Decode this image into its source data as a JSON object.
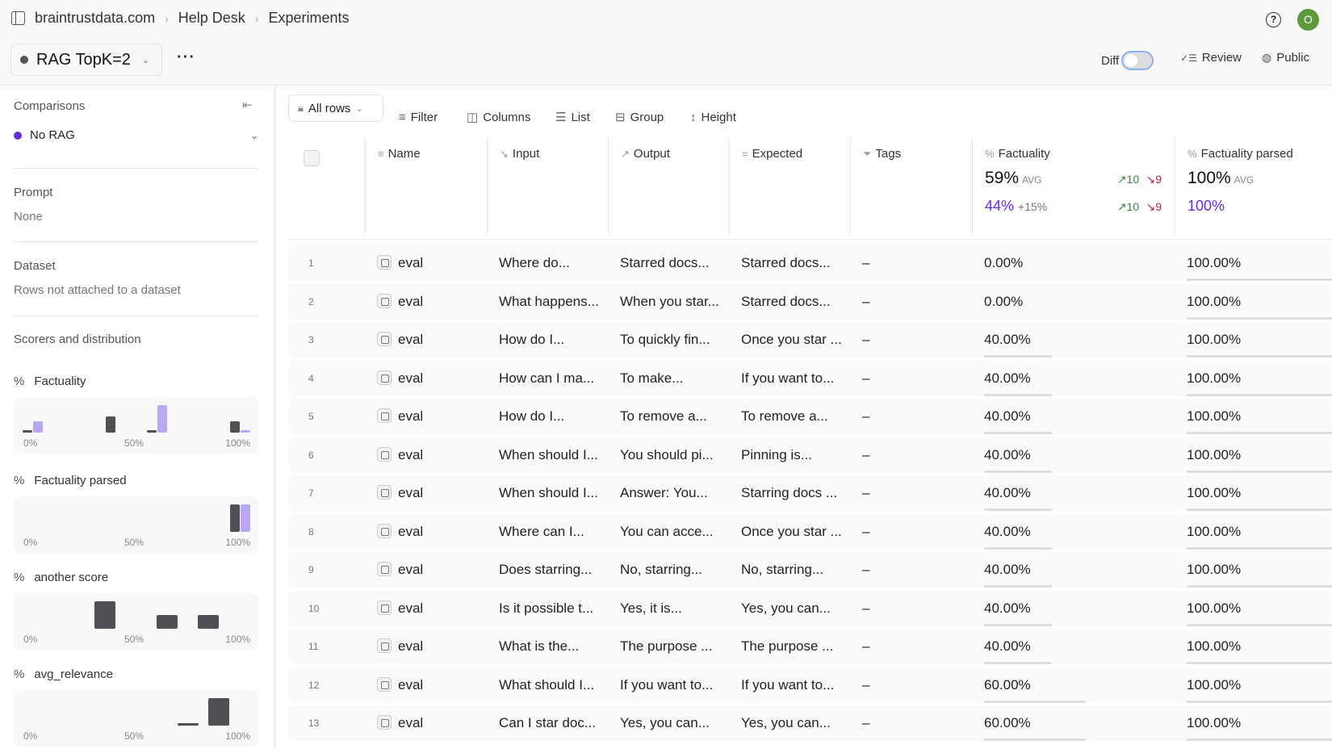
{
  "breadcrumb": [
    "braintrustdata.com",
    "Help Desk",
    "Experiments"
  ],
  "experiment": {
    "name": "RAG TopK=2",
    "color": "#555555"
  },
  "header": {
    "diff_label": "Diff",
    "diff_on": false,
    "review_label": "Review",
    "public_label": "Public",
    "avatar_initial": "O"
  },
  "sidebar": {
    "comparisons_label": "Comparisons",
    "comparison": {
      "name": "No RAG",
      "color": "#6a2bd9"
    },
    "prompt_label": "Prompt",
    "prompt_value": "None",
    "dataset_label": "Dataset",
    "dataset_value": "Rows not attached to a dataset",
    "scorers_label": "Scorers and distribution",
    "axis": [
      "0%",
      "50%",
      "100%"
    ],
    "scorers": [
      {
        "name": "Factuality",
        "bins": [
          {
            "v": 0,
            "p": 0,
            "c": 2
          },
          {
            "v": 0.4,
            "p": 3,
            "c": null
          },
          {
            "v": 0.6,
            "p": 0,
            "c": 5
          },
          {
            "v": 1,
            "p": 2,
            "c": 0
          }
        ]
      },
      {
        "name": "Factuality parsed",
        "bins": [
          {
            "v": 1,
            "p": 5,
            "c": 5
          }
        ]
      },
      {
        "name": "another score",
        "bins": [
          {
            "v": 0.35,
            "p": 4,
            "c": null
          },
          {
            "v": 0.65,
            "p": 2,
            "c": null
          },
          {
            "v": 0.85,
            "p": 2,
            "c": null
          }
        ]
      },
      {
        "name": "avg_relevance",
        "bins": [
          {
            "v": 0.75,
            "p": 0,
            "c": null
          },
          {
            "v": 0.9,
            "p": 4,
            "c": null
          }
        ]
      }
    ]
  },
  "toolbar": {
    "all_rows": "All rows",
    "filter": "Filter",
    "columns": "Columns",
    "list": "List",
    "group": "Group",
    "height": "Height"
  },
  "columns": {
    "name": "Name",
    "input": "Input",
    "output": "Output",
    "expected": "Expected",
    "tags": "Tags",
    "factuality": "Factuality",
    "factuality_parsed": "Factuality parsed"
  },
  "summary": {
    "factuality": {
      "avg": "59%",
      "avg_label": "AVG",
      "up": "10",
      "down": "9",
      "cmp": "44%",
      "delta": "+15%",
      "cmp_up": "10",
      "cmp_down": "9"
    },
    "factuality_parsed": {
      "avg": "100%",
      "avg_label": "AVG",
      "cmp": "100%"
    }
  },
  "rows": [
    {
      "n": "1",
      "name": "eval",
      "input": "Where do...",
      "output": "Starred docs...",
      "expected": "Starred docs...",
      "tags": "–",
      "f": "0.00%",
      "fv": 0,
      "fp": "100.00%",
      "fpv": 1
    },
    {
      "n": "2",
      "name": "eval",
      "input": "What happens...",
      "output": "When you star...",
      "expected": "Starred docs...",
      "tags": "–",
      "f": "0.00%",
      "fv": 0,
      "fp": "100.00%",
      "fpv": 1
    },
    {
      "n": "3",
      "name": "eval",
      "input": "How do I...",
      "output": "To quickly fin...",
      "expected": "Once you star ...",
      "tags": "–",
      "f": "40.00%",
      "fv": 0.4,
      "fp": "100.00%",
      "fpv": 1
    },
    {
      "n": "4",
      "name": "eval",
      "input": "How can I ma...",
      "output": "To make...",
      "expected": "If you want to...",
      "tags": "–",
      "f": "40.00%",
      "fv": 0.4,
      "fp": "100.00%",
      "fpv": 1
    },
    {
      "n": "5",
      "name": "eval",
      "input": "How do I...",
      "output": "To remove a...",
      "expected": "To remove a...",
      "tags": "–",
      "f": "40.00%",
      "fv": 0.4,
      "fp": "100.00%",
      "fpv": 1
    },
    {
      "n": "6",
      "name": "eval",
      "input": "When should I...",
      "output": "You should pi...",
      "expected": "Pinning is...",
      "tags": "–",
      "f": "40.00%",
      "fv": 0.4,
      "fp": "100.00%",
      "fpv": 1
    },
    {
      "n": "7",
      "name": "eval",
      "input": "When should I...",
      "output": "Answer: You...",
      "expected": "Starring docs ...",
      "tags": "–",
      "f": "40.00%",
      "fv": 0.4,
      "fp": "100.00%",
      "fpv": 1
    },
    {
      "n": "8",
      "name": "eval",
      "input": "Where can I...",
      "output": "You can acce...",
      "expected": "Once you star ...",
      "tags": "–",
      "f": "40.00%",
      "fv": 0.4,
      "fp": "100.00%",
      "fpv": 1
    },
    {
      "n": "9",
      "name": "eval",
      "input": "Does starring...",
      "output": "No, starring...",
      "expected": "No, starring...",
      "tags": "–",
      "f": "40.00%",
      "fv": 0.4,
      "fp": "100.00%",
      "fpv": 1
    },
    {
      "n": "10",
      "name": "eval",
      "input": "Is it possible t...",
      "output": "Yes, it is...",
      "expected": "Yes, you can...",
      "tags": "–",
      "f": "40.00%",
      "fv": 0.4,
      "fp": "100.00%",
      "fpv": 1
    },
    {
      "n": "11",
      "name": "eval",
      "input": "What is the...",
      "output": "The purpose ...",
      "expected": "The purpose ...",
      "tags": "–",
      "f": "40.00%",
      "fv": 0.4,
      "fp": "100.00%",
      "fpv": 1
    },
    {
      "n": "12",
      "name": "eval",
      "input": "What should I...",
      "output": "If you want to...",
      "expected": "If you want to...",
      "tags": "–",
      "f": "60.00%",
      "fv": 0.6,
      "fp": "100.00%",
      "fpv": 1
    },
    {
      "n": "13",
      "name": "eval",
      "input": "Can I star doc...",
      "output": "Yes, you can...",
      "expected": "Yes, you can...",
      "tags": "–",
      "f": "60.00%",
      "fv": 0.6,
      "fp": "100.00%",
      "fpv": 1
    }
  ]
}
